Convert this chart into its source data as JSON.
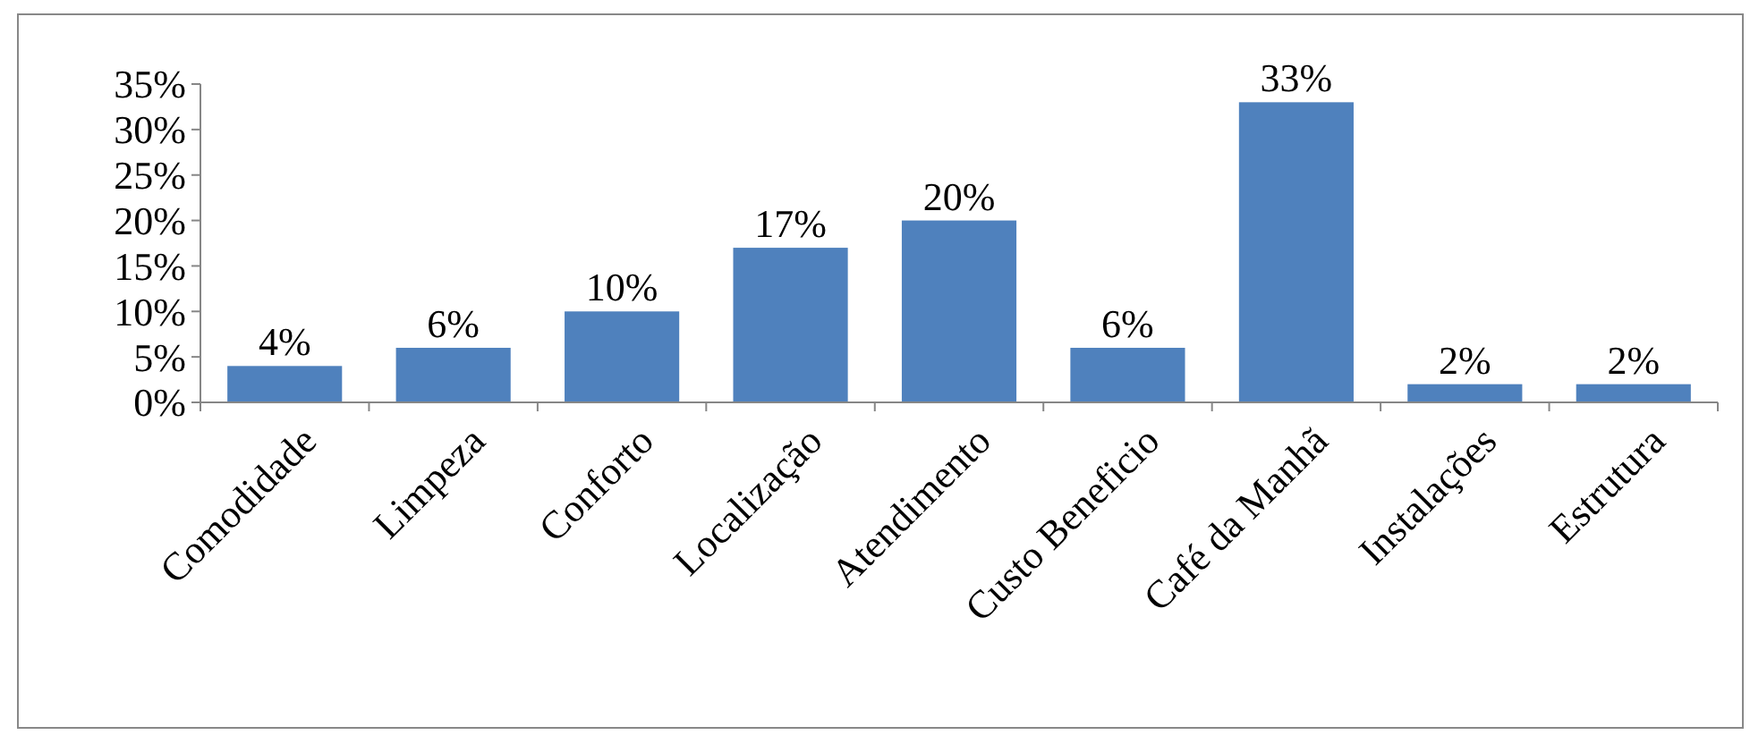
{
  "chart_data": {
    "type": "bar",
    "categories": [
      "Comodidade",
      "Limpeza",
      "Conforto",
      "Localização",
      "Atendimento",
      "Custo Beneficio",
      "Café da Manhã",
      "Instalações",
      "Estrutura"
    ],
    "values": [
      4,
      6,
      10,
      17,
      20,
      6,
      33,
      2,
      2
    ],
    "value_labels": [
      "4%",
      "6%",
      "10%",
      "17%",
      "20%",
      "6%",
      "33%",
      "2%",
      "2%"
    ],
    "color": "#4f81bd",
    "ylim": [
      0,
      35
    ],
    "yticks": [
      {
        "value": 0,
        "label": "0%"
      },
      {
        "value": 5,
        "label": "5%"
      },
      {
        "value": 10,
        "label": "10%"
      },
      {
        "value": 15,
        "label": "15%"
      },
      {
        "value": 20,
        "label": "20%"
      },
      {
        "value": 25,
        "label": "25%"
      },
      {
        "value": 30,
        "label": "30%"
      },
      {
        "value": 35,
        "label": "35%"
      }
    ],
    "grid": false
  }
}
